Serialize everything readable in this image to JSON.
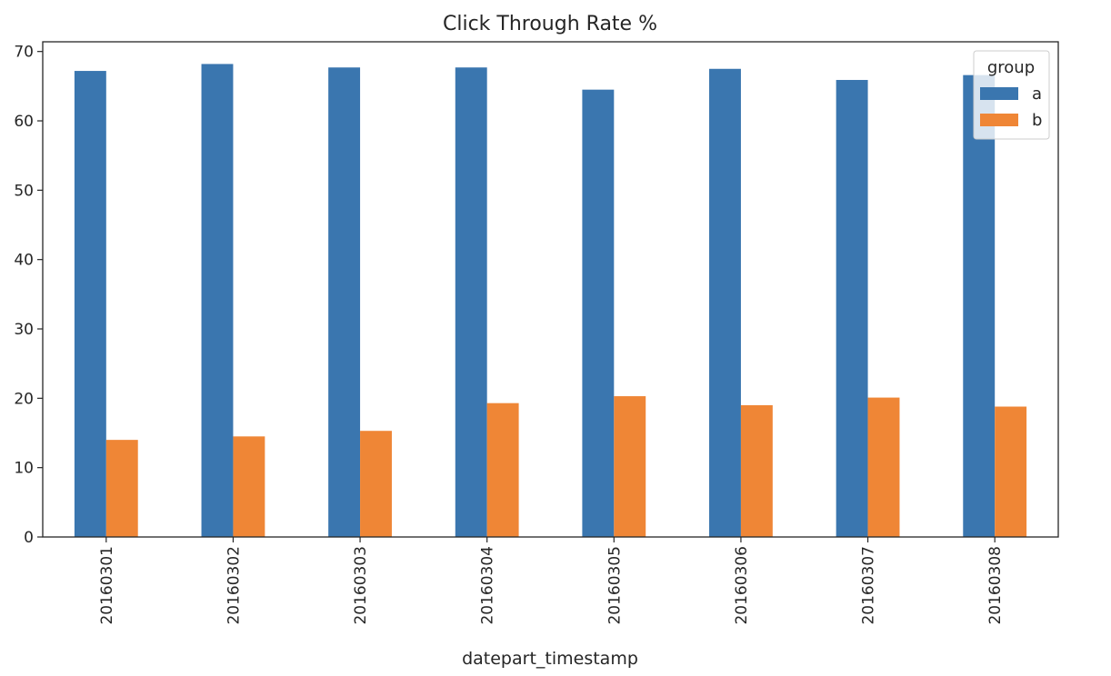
{
  "chart_data": {
    "type": "bar",
    "title": "Click Through Rate %",
    "xlabel": "datepart_timestamp",
    "ylabel": "",
    "categories": [
      "20160301",
      "20160302",
      "20160303",
      "20160304",
      "20160305",
      "20160306",
      "20160307",
      "20160308"
    ],
    "series": [
      {
        "name": "a",
        "color": "#3a76af",
        "values": [
          67.2,
          68.2,
          67.7,
          67.7,
          64.5,
          67.5,
          65.9,
          66.6
        ]
      },
      {
        "name": "b",
        "color": "#ef8636",
        "values": [
          14.0,
          14.5,
          15.3,
          19.3,
          20.3,
          19.0,
          20.1,
          18.8
        ]
      }
    ],
    "ylim": [
      0,
      71.4
    ],
    "yticks": [
      0,
      10,
      20,
      30,
      40,
      50,
      60,
      70
    ],
    "grid": false,
    "legend": {
      "title": "group",
      "placement": "top-right"
    }
  }
}
